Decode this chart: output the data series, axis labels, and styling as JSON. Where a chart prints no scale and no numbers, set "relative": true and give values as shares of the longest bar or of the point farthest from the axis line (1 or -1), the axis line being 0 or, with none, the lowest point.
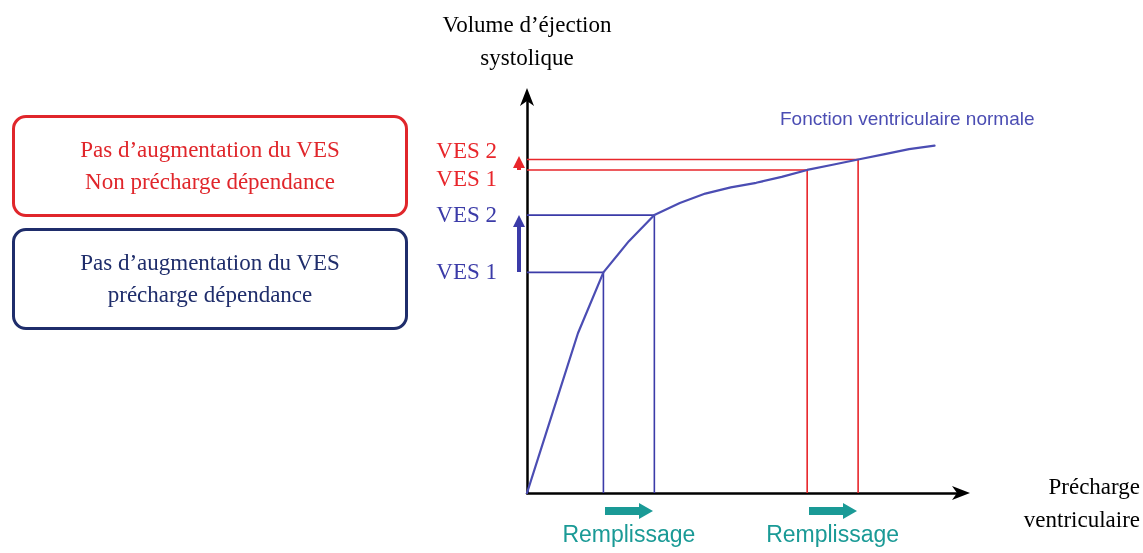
{
  "chart_data": {
    "type": "line",
    "relative": true,
    "xlabel": "Précharge ventriculaire",
    "ylabel": "Volume d’éjection systolique",
    "grid": false,
    "legend": false,
    "categories": [
      null,
      null,
      null,
      null,
      null,
      null,
      null,
      null,
      null,
      null,
      null,
      null,
      null,
      null,
      null,
      null,
      null,
      null
    ],
    "series": [
      {
        "name": "Fonction ventriculaire normale",
        "color": "#4b4db3",
        "values": [
          0,
          0.23,
          0.46,
          0.635,
          0.725,
          0.8,
          0.835,
          0.862,
          0.88,
          0.893,
          0.91,
          0.93,
          0.945,
          0.96,
          0.975,
          0.99,
          1,
          null
        ]
      }
    ],
    "ref_lines": [
      {
        "axis": "y",
        "value": 0.635,
        "label": "VES 1",
        "color": "#3b3ba8"
      },
      {
        "axis": "y",
        "value": 0.8,
        "label": "VES 2",
        "color": "#3b3ba8"
      },
      {
        "axis": "y",
        "value": 0.93,
        "label": "VES 1",
        "color": "#e8262b"
      },
      {
        "axis": "y",
        "value": 0.96,
        "label": "VES 2",
        "color": "#e8262b"
      }
    ],
    "annotations": [
      "Pas d’augmentation du VES\nNon précharge dépendance",
      "Pas d’augmentation du VES\nprécharge dépendance",
      "Remplissage",
      "Remplissage"
    ]
  }
}
